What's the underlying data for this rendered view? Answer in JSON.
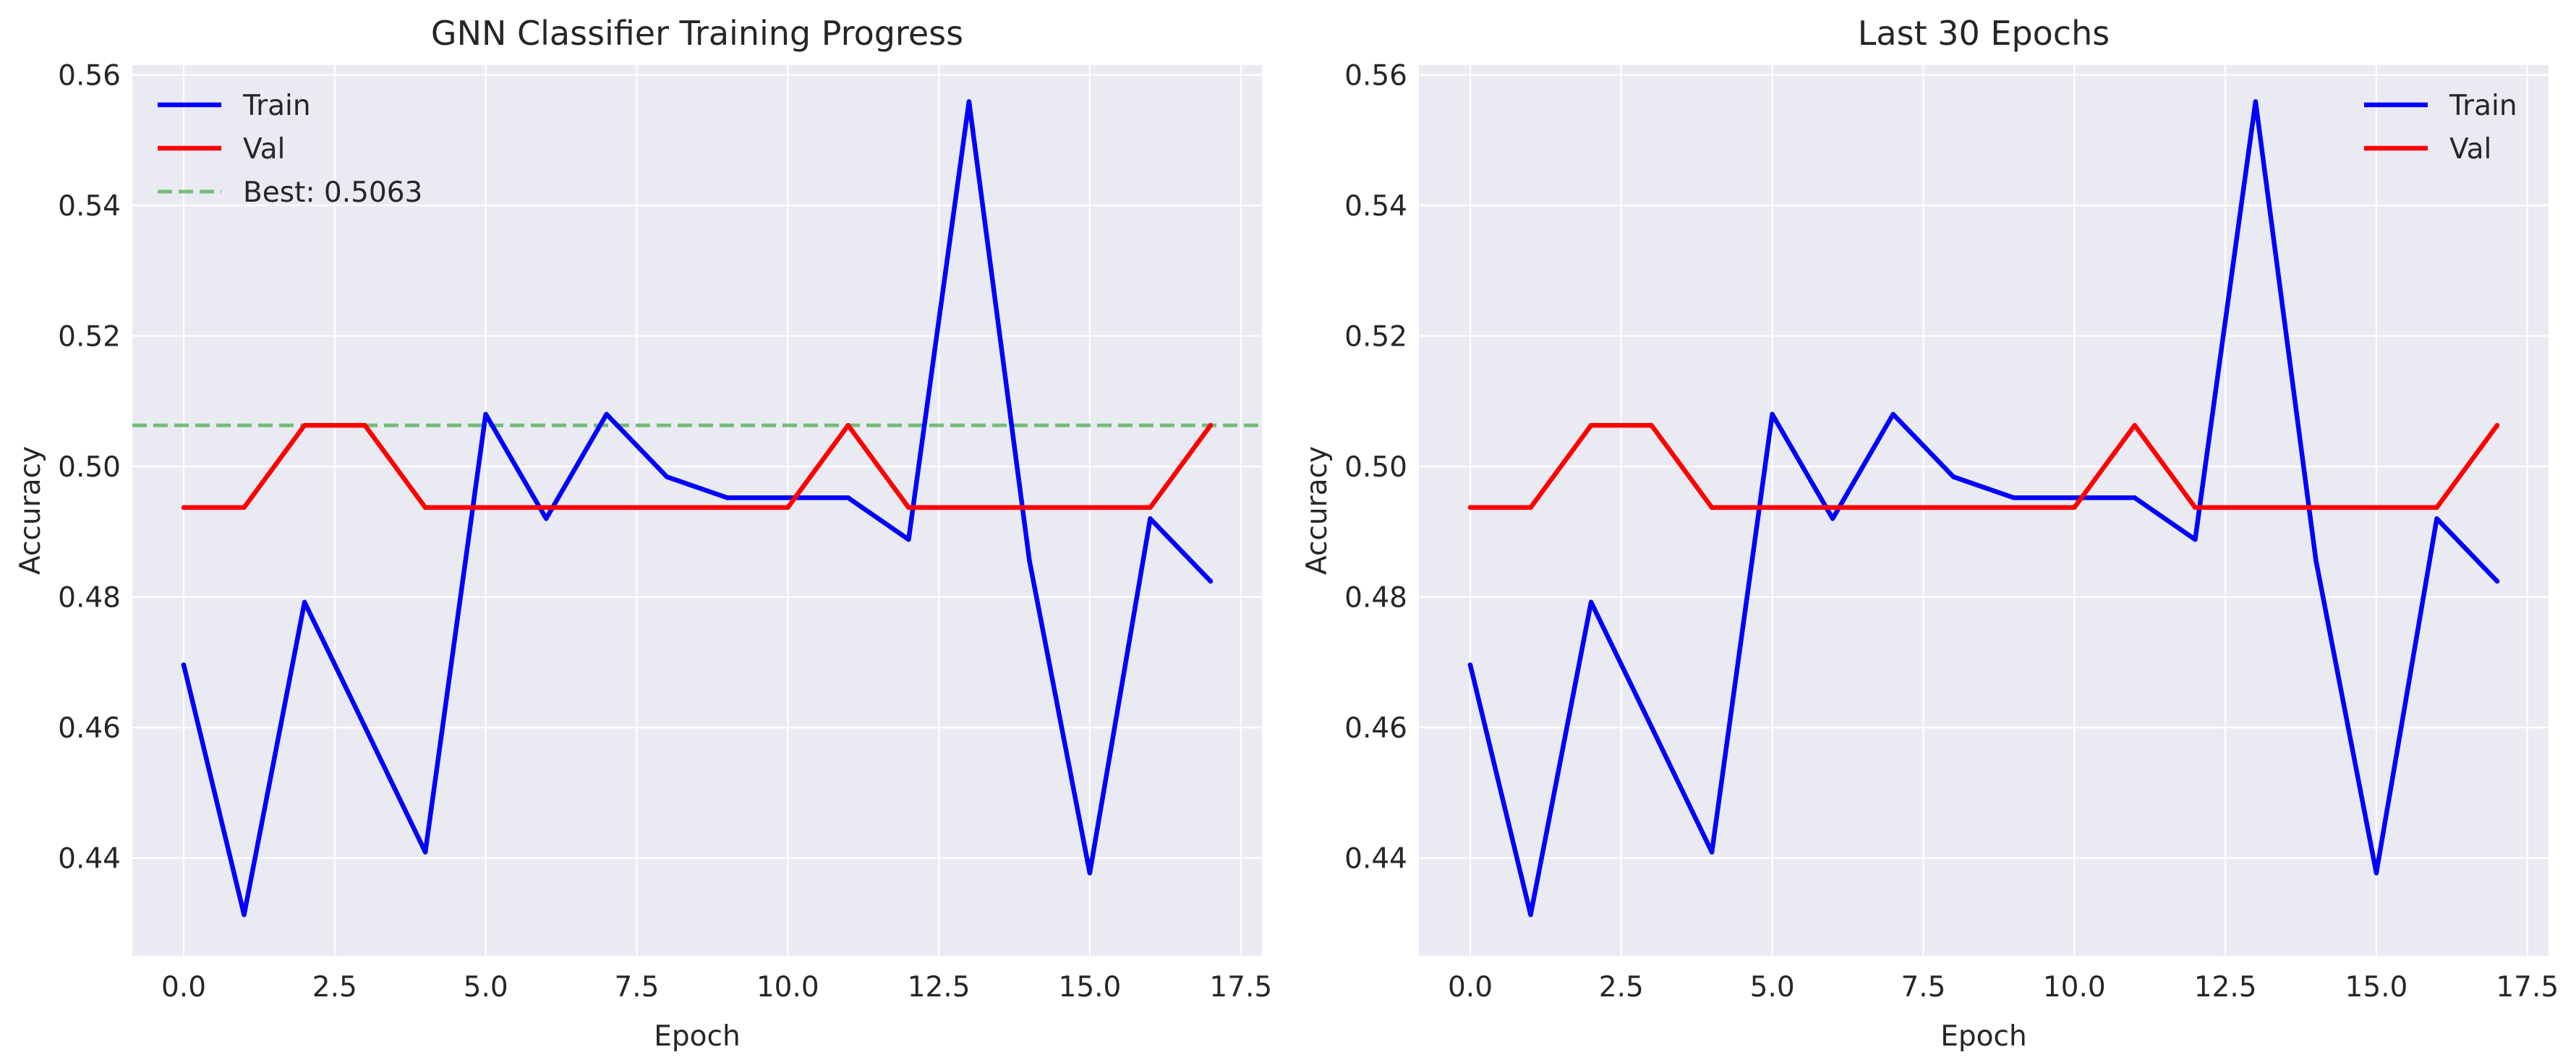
{
  "colors": {
    "panel_background": "#eaeaf2",
    "grid": "#ffffff",
    "train": "#0000ff",
    "val": "#ff0000",
    "best": "#4caf50"
  },
  "chart_data": [
    {
      "type": "line",
      "title": "GNN Classifier Training Progress",
      "xlabel": "Epoch",
      "ylabel": "Accuracy",
      "xlim": [
        -0.85,
        17.85
      ],
      "ylim": [
        0.425,
        0.5615
      ],
      "xticks": [
        0,
        2.5,
        5,
        7.5,
        10,
        12.5,
        15,
        17.5
      ],
      "xtick_labels": [
        "0.0",
        "2.5",
        "5.0",
        "7.5",
        "10.0",
        "12.5",
        "15.0",
        "17.5"
      ],
      "yticks": [
        0.44,
        0.46,
        0.48,
        0.5,
        0.52,
        0.54,
        0.56
      ],
      "ytick_labels": [
        "0.44",
        "0.46",
        "0.48",
        "0.50",
        "0.52",
        "0.54",
        "0.56"
      ],
      "grid": true,
      "legend_position": "upper-left",
      "x": [
        0,
        1,
        2,
        3,
        4,
        5,
        6,
        7,
        8,
        9,
        10,
        11,
        12,
        13,
        14,
        15,
        16,
        17
      ],
      "series": [
        {
          "name": "Train",
          "color": "#0000ff",
          "values": [
            0.4696,
            0.4313,
            0.4792,
            0.4601,
            0.4409,
            0.508,
            0.492,
            0.508,
            0.4984,
            0.4952,
            0.4952,
            0.4952,
            0.4888,
            0.5559,
            0.4856,
            0.4377,
            0.492,
            0.4824
          ]
        },
        {
          "name": "Val",
          "color": "#ff0000",
          "values": [
            0.4937,
            0.4937,
            0.5063,
            0.5063,
            0.4937,
            0.4937,
            0.4937,
            0.4937,
            0.4937,
            0.4937,
            0.4937,
            0.5063,
            0.4937,
            0.4937,
            0.4937,
            0.4937,
            0.4937,
            0.5063
          ]
        }
      ],
      "hlines": [
        {
          "name": "Best: 0.5063",
          "y": 0.5063,
          "color": "#4caf50",
          "style": "dashed"
        }
      ]
    },
    {
      "type": "line",
      "title": "Last 30 Epochs",
      "xlabel": "Epoch",
      "ylabel": "Accuracy",
      "xlim": [
        -0.85,
        17.85
      ],
      "ylim": [
        0.425,
        0.5615
      ],
      "xticks": [
        0,
        2.5,
        5,
        7.5,
        10,
        12.5,
        15,
        17.5
      ],
      "xtick_labels": [
        "0.0",
        "2.5",
        "5.0",
        "7.5",
        "10.0",
        "12.5",
        "15.0",
        "17.5"
      ],
      "yticks": [
        0.44,
        0.46,
        0.48,
        0.5,
        0.52,
        0.54,
        0.56
      ],
      "ytick_labels": [
        "0.44",
        "0.46",
        "0.48",
        "0.50",
        "0.52",
        "0.54",
        "0.56"
      ],
      "grid": true,
      "legend_position": "upper-right",
      "x": [
        0,
        1,
        2,
        3,
        4,
        5,
        6,
        7,
        8,
        9,
        10,
        11,
        12,
        13,
        14,
        15,
        16,
        17
      ],
      "series": [
        {
          "name": "Train",
          "color": "#0000ff",
          "values": [
            0.4696,
            0.4313,
            0.4792,
            0.4601,
            0.4409,
            0.508,
            0.492,
            0.508,
            0.4984,
            0.4952,
            0.4952,
            0.4952,
            0.4888,
            0.5559,
            0.4856,
            0.4377,
            0.492,
            0.4824
          ]
        },
        {
          "name": "Val",
          "color": "#ff0000",
          "values": [
            0.4937,
            0.4937,
            0.5063,
            0.5063,
            0.4937,
            0.4937,
            0.4937,
            0.4937,
            0.4937,
            0.4937,
            0.4937,
            0.5063,
            0.4937,
            0.4937,
            0.4937,
            0.4937,
            0.4937,
            0.5063
          ]
        }
      ],
      "hlines": []
    }
  ]
}
